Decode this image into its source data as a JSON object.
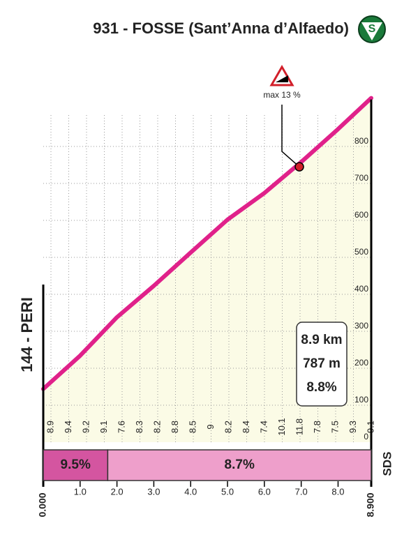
{
  "chart_data": {
    "type": "area",
    "title": "931 - FOSSE (Sant’Anna d’Alfaedo)",
    "start_label": "144 - PERI",
    "icon": "S",
    "brand": "SDS",
    "x": [
      0,
      1,
      2,
      3,
      4,
      5,
      6,
      7,
      8,
      8.9
    ],
    "values": [
      144,
      234,
      338,
      423,
      513,
      602,
      674,
      758,
      847,
      931
    ],
    "color": "#e0218a",
    "fill": "#fbfbe6",
    "xlim": [
      0,
      8.9
    ],
    "ylim": [
      0,
      950
    ],
    "yticks": [
      0,
      100,
      200,
      300,
      400,
      500,
      600,
      700,
      800
    ],
    "xticks": [
      {
        "value": 0,
        "label": "0.000"
      },
      {
        "value": 1,
        "label": "1.0"
      },
      {
        "value": 2,
        "label": "2.0"
      },
      {
        "value": 3,
        "label": "3.0"
      },
      {
        "value": 4,
        "label": "4.0"
      },
      {
        "value": 5,
        "label": "5.0"
      },
      {
        "value": 6,
        "label": "6.0"
      },
      {
        "value": 7,
        "label": "7.0"
      },
      {
        "value": 8,
        "label": "8.0"
      },
      {
        "value": 8.9,
        "label": "8.900"
      }
    ],
    "grid": true,
    "grades": [
      8.9,
      9.4,
      9.2,
      9.1,
      7.6,
      8.3,
      8.2,
      8.8,
      8.5,
      9.0,
      8.2,
      8.4,
      7.4,
      10.1,
      11.8,
      7.8,
      7.5,
      9.3,
      9.1
    ],
    "max_marker": {
      "label": "max 13 %",
      "x": 6.95,
      "y": 745
    },
    "summary": [
      "8.9 km",
      "787 m",
      "8.8%"
    ],
    "segments": [
      {
        "start": 0,
        "end": 1.75,
        "value": 9.5,
        "value_label": "9.5%",
        "color": "#d455a0"
      },
      {
        "start": 1.75,
        "end": 8.9,
        "value": 8.7,
        "value_label": "8.7%",
        "color": "#ee9fcb"
      }
    ]
  }
}
